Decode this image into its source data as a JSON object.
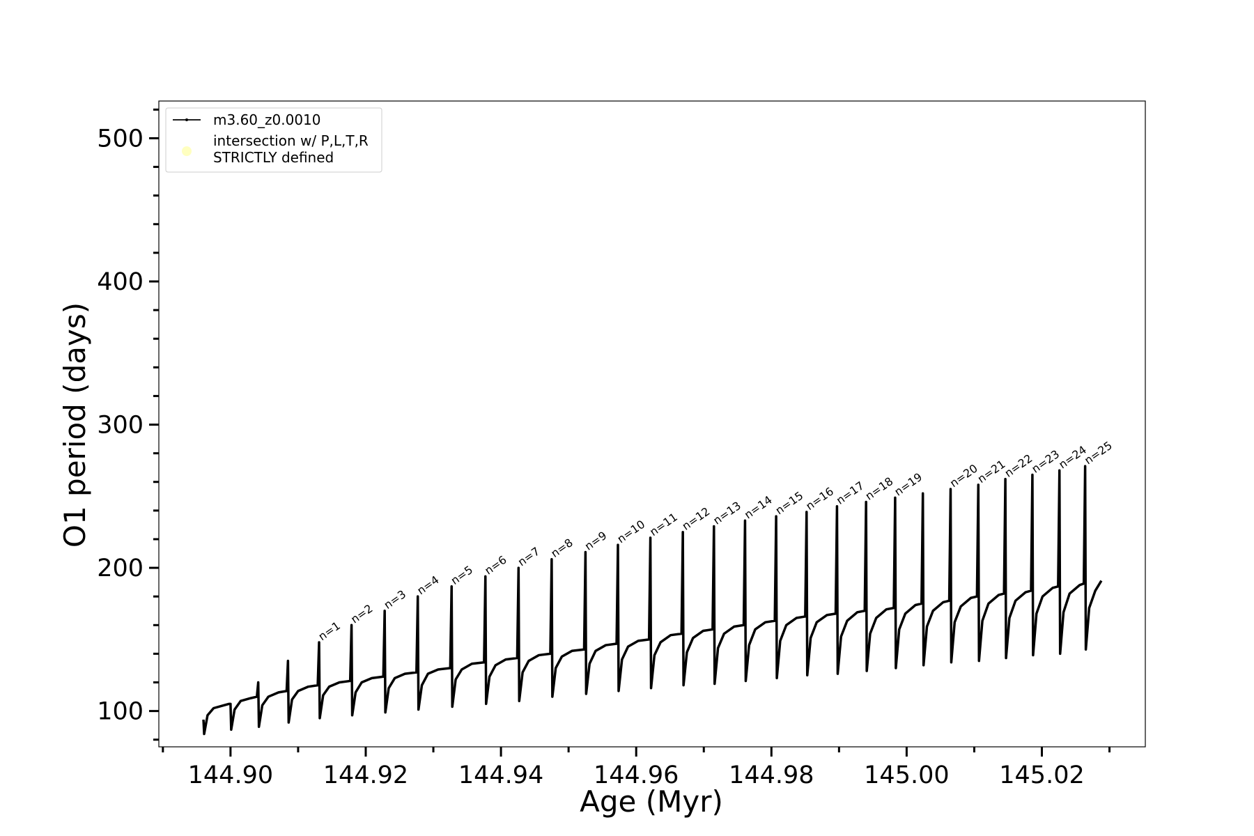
{
  "chart_data": {
    "type": "line",
    "xlabel": "Age (Myr)",
    "ylabel": "O1 period (days)",
    "xlim": [
      144.8894,
      145.0353
    ],
    "ylim": [
      75,
      526
    ],
    "xticks": [
      {
        "value": 144.9,
        "label": "144.90"
      },
      144.92,
      144.94,
      144.96,
      144.98,
      {
        "value": 145,
        "label": "145.00"
      },
      145.02
    ],
    "xminorticks": [
      144.89,
      144.91,
      144.93,
      144.95,
      144.97,
      144.99,
      145.01,
      145.03
    ],
    "yticks": [
      100,
      200,
      300,
      400,
      500
    ],
    "yminorticks": [
      80,
      120,
      140,
      160,
      180,
      220,
      240,
      260,
      280,
      320,
      340,
      360,
      380,
      420,
      440,
      460,
      480,
      520
    ],
    "legend_loc": "upper left",
    "series": [
      {
        "name": "m3.60_z0.0010",
        "color": "#000000",
        "x": [
          144.896,
          144.8961,
          144.8966,
          144.8975,
          144.899,
          144.8998,
          144.9,
          144.9001,
          144.9006,
          144.9015,
          144.903,
          144.9039,
          144.9041,
          144.9042,
          144.9047,
          144.9056,
          144.9071,
          144.9083,
          144.9085,
          144.9086,
          144.9091,
          144.91,
          144.9115,
          144.9129,
          144.9131,
          144.9132,
          144.9137,
          144.9146,
          144.9161,
          144.9177,
          144.9179,
          144.918,
          144.9185,
          144.9194,
          144.9209,
          144.9226,
          144.9228,
          144.9229,
          144.9234,
          144.9243,
          144.9258,
          144.9275,
          144.9277,
          144.9278,
          144.9283,
          144.9292,
          144.9307,
          144.9325,
          144.9327,
          144.9328,
          144.9333,
          144.9342,
          144.9357,
          144.9375,
          144.9377,
          144.9378,
          144.9383,
          144.9392,
          144.9407,
          144.9424,
          144.9426,
          144.9427,
          144.9432,
          144.9441,
          144.9456,
          144.9473,
          144.9475,
          144.9476,
          144.9481,
          144.949,
          144.9505,
          144.9523,
          144.9525,
          144.9526,
          144.9531,
          144.954,
          144.9555,
          144.9571,
          144.9573,
          144.9574,
          144.9579,
          144.9588,
          144.9603,
          144.9619,
          144.9621,
          144.9622,
          144.9627,
          144.9636,
          144.9651,
          144.9667,
          144.9669,
          144.967,
          144.9675,
          144.9684,
          144.9699,
          144.9713,
          144.9715,
          144.9716,
          144.9721,
          144.973,
          144.9745,
          144.9759,
          144.9761,
          144.9762,
          144.9767,
          144.9776,
          144.9791,
          144.9805,
          144.9807,
          144.9808,
          144.9813,
          144.9822,
          144.9837,
          144.985,
          144.9852,
          144.9853,
          144.9858,
          144.9867,
          144.9882,
          144.9895,
          144.9897,
          144.9898,
          144.9903,
          144.9912,
          144.9927,
          144.9938,
          144.994,
          144.9941,
          144.9946,
          144.9955,
          144.997,
          144.9981,
          144.9983,
          144.9984,
          144.9989,
          144.9998,
          145.0013,
          145.0022,
          145.0024,
          145.0025,
          145.003,
          145.0039,
          145.0054,
          145.0063,
          145.0065,
          145.0066,
          145.0071,
          145.008,
          145.0095,
          145.0104,
          145.0106,
          145.0107,
          145.0112,
          145.0121,
          145.0136,
          145.0144,
          145.0146,
          145.0147,
          145.0152,
          145.0161,
          145.0176,
          145.0184,
          145.0186,
          145.0187,
          145.0192,
          145.0201,
          145.0216,
          145.0224,
          145.0226,
          145.0227,
          145.0232,
          145.0241,
          145.0256,
          145.0262,
          145.0264,
          145.0265,
          145.027,
          145.0279,
          145.0288
        ],
        "values": [
          94,
          84,
          97,
          102,
          104,
          105,
          105,
          87,
          101,
          107,
          109,
          110,
          120,
          89,
          104,
          110,
          113,
          114,
          135,
          92,
          108,
          114,
          117,
          118,
          148,
          95,
          111,
          117,
          120,
          121,
          160,
          97,
          113,
          120,
          123,
          124,
          170,
          99,
          116,
          123,
          126,
          127,
          180,
          101,
          118,
          126,
          129,
          130,
          187,
          103,
          122,
          129,
          133,
          134,
          194,
          105,
          124,
          132,
          136,
          137,
          200,
          107,
          127,
          135,
          139,
          140,
          206,
          110,
          130,
          138,
          142,
          143,
          211,
          112,
          133,
          142,
          146,
          147,
          216,
          114,
          136,
          145,
          149,
          150,
          221,
          116,
          139,
          148,
          153,
          154,
          225,
          118,
          141,
          151,
          156,
          157,
          229,
          119,
          144,
          154,
          159,
          160,
          233,
          121,
          146,
          157,
          162,
          163,
          236,
          123,
          149,
          160,
          165,
          166,
          239,
          125,
          151,
          162,
          167,
          168,
          243,
          126,
          152,
          163,
          169,
          170,
          246,
          128,
          154,
          165,
          171,
          172,
          249,
          130,
          157,
          168,
          174,
          175,
          252,
          132,
          159,
          170,
          176,
          177,
          255,
          134,
          162,
          173,
          179,
          180,
          258,
          135,
          163,
          175,
          181,
          182,
          262,
          137,
          165,
          177,
          183,
          184,
          265,
          139,
          168,
          180,
          186,
          187,
          268,
          140,
          169,
          182,
          188,
          189,
          271,
          143,
          172,
          184,
          191
        ]
      }
    ],
    "extra_legend": {
      "label": [
        "intersection w/ P,L,T,R",
        "STRICTLY defined"
      ],
      "color": "#ffffc0"
    },
    "annotations": [
      {
        "text": "n=1",
        "x": 144.9131,
        "y": 148
      },
      {
        "text": "n=2",
        "x": 144.9179,
        "y": 160
      },
      {
        "text": "n=3",
        "x": 144.9228,
        "y": 170
      },
      {
        "text": "n=4",
        "x": 144.9277,
        "y": 180
      },
      {
        "text": "n=5",
        "x": 144.9327,
        "y": 187
      },
      {
        "text": "n=6",
        "x": 144.9377,
        "y": 194
      },
      {
        "text": "n=7",
        "x": 144.9426,
        "y": 200
      },
      {
        "text": "n=8",
        "x": 144.9475,
        "y": 206
      },
      {
        "text": "n=9",
        "x": 144.9525,
        "y": 211
      },
      {
        "text": "n=10",
        "x": 144.9573,
        "y": 216
      },
      {
        "text": "n=11",
        "x": 144.9621,
        "y": 221
      },
      {
        "text": "n=12",
        "x": 144.9669,
        "y": 225
      },
      {
        "text": "n=13",
        "x": 144.9715,
        "y": 229
      },
      {
        "text": "n=14",
        "x": 144.9761,
        "y": 233
      },
      {
        "text": "n=15",
        "x": 144.9807,
        "y": 236
      },
      {
        "text": "n=16",
        "x": 144.9852,
        "y": 239
      },
      {
        "text": "n=17",
        "x": 144.9897,
        "y": 243
      },
      {
        "text": "n=18",
        "x": 144.994,
        "y": 246
      },
      {
        "text": "n=19",
        "x": 144.9983,
        "y": 249
      },
      {
        "text": "n=20",
        "x": 145.0065,
        "y": 255
      },
      {
        "text": "n=21",
        "x": 145.0106,
        "y": 258
      },
      {
        "text": "n=22",
        "x": 145.0146,
        "y": 262
      },
      {
        "text": "n=23",
        "x": 145.0186,
        "y": 265
      },
      {
        "text": "n=24",
        "x": 145.0226,
        "y": 268
      },
      {
        "text": "n=25",
        "x": 145.0264,
        "y": 271
      }
    ]
  }
}
